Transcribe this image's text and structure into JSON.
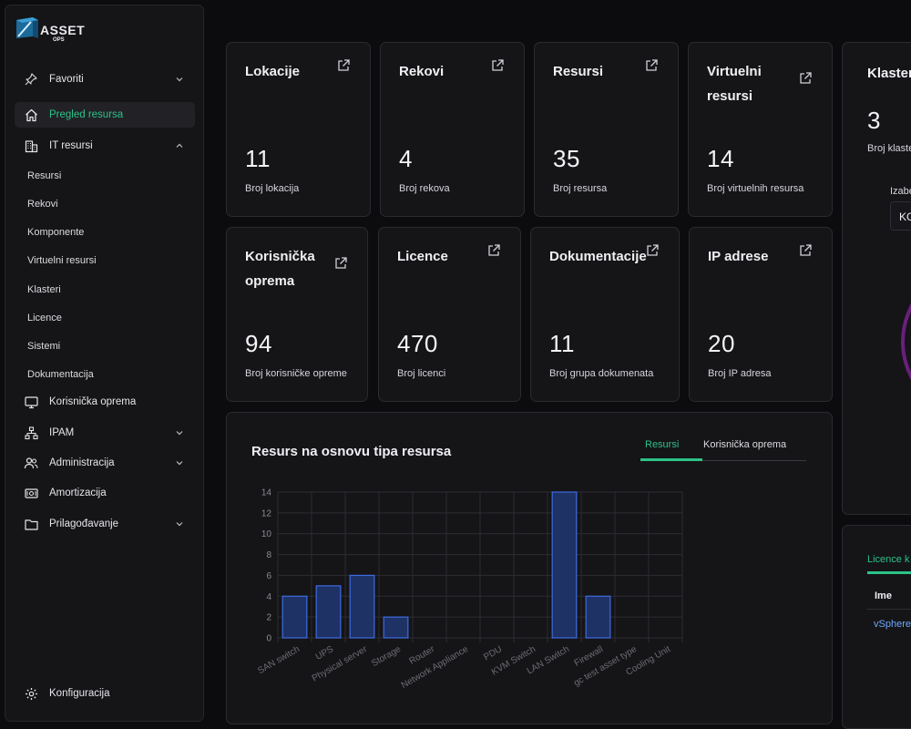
{
  "logo": {
    "text": "ASSET",
    "sub": "OPS"
  },
  "sidebar": {
    "favorites": "Favoriti",
    "overview": "Pregled resursa",
    "it_resources": "IT resursi",
    "it_sub": [
      "Resursi",
      "Rekovi",
      "Komponente",
      "Virtuelni resursi",
      "Klasteri",
      "Licence",
      "Sistemi",
      "Dokumentacija"
    ],
    "user_equipment": "Korisnička oprema",
    "ipam": "IPAM",
    "administration": "Administracija",
    "amortization": "Amortizacija",
    "customization": "Prilagođavanje",
    "configuration": "Konfiguracija"
  },
  "cards": [
    {
      "title": "Lokacije",
      "value": "11",
      "sub": "Broj lokacija"
    },
    {
      "title": "Rekovi",
      "value": "4",
      "sub": "Broj rekova"
    },
    {
      "title": "Resursi",
      "value": "35",
      "sub": "Broj resursa"
    },
    {
      "title": "Virtuelni resursi",
      "value": "14",
      "sub": "Broj virtuelnih resursa"
    },
    {
      "title": "Korisnička oprema",
      "value": "94",
      "sub": "Broj korisničke opreme"
    },
    {
      "title": "Licence",
      "value": "470",
      "sub": "Broj licenci"
    },
    {
      "title": "Dokumentacije",
      "value": "11",
      "sub": "Broj grupa dokumenata"
    },
    {
      "title": "IP adrese",
      "value": "20",
      "sub": "Broj IP adresa"
    }
  ],
  "chart_panel": {
    "title": "Resurs na osnovu tipa resursa",
    "tab_active": "Resursi",
    "tab_other": "Korisnička oprema"
  },
  "chart_data": {
    "type": "bar",
    "categories": [
      "SAN switch",
      "UPS",
      "Physical server",
      "Storage",
      "Router",
      "Network Appliance",
      "PDU",
      "KVM Switch",
      "LAN Switch",
      "Firewall",
      "gc test asset type",
      "Cooling Unit"
    ],
    "values": [
      4,
      5,
      6,
      2,
      0,
      0,
      0,
      0,
      14,
      4,
      0,
      0
    ],
    "yticks": [
      0,
      2,
      4,
      6,
      8,
      10,
      12,
      14
    ],
    "ylim": [
      0,
      14
    ],
    "grid": true,
    "bar_fill": "#1e3266",
    "bar_stroke": "#3e6be0"
  },
  "right_panel": {
    "title": "Klaster",
    "value": "3",
    "sub": "Broj klaste",
    "select_label": "Izabe",
    "select_value": "KG"
  },
  "right_panel2": {
    "tab": "Licence k",
    "col": "Ime",
    "row": "vSphere"
  },
  "colors": {
    "accent": "#2cc287",
    "bg": "#0c0c0f",
    "card": "#151518"
  }
}
